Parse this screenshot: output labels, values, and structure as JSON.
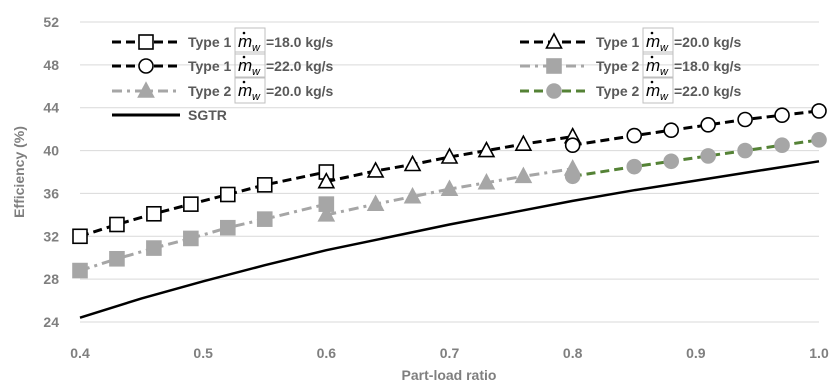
{
  "chart_data": {
    "type": "line",
    "xlabel": "Part-load ratio",
    "ylabel": "Efficiency (%)",
    "xlim": [
      0.4,
      1.0
    ],
    "ylim": [
      24,
      52
    ],
    "xticks": [
      0.4,
      0.5,
      0.6,
      0.7,
      0.8,
      0.9,
      1.0
    ],
    "xtick_labels": [
      "0.4",
      "0.5",
      "0.6",
      "0.7",
      "0.8",
      "0.9",
      "1.0"
    ],
    "yticks": [
      24,
      28,
      32,
      36,
      40,
      44,
      48,
      52
    ],
    "ytick_labels": [
      "24",
      "28",
      "32",
      "36",
      "40",
      "44",
      "48",
      "52"
    ],
    "grid": "horizontal",
    "legend_position": "top",
    "series": [
      {
        "name": "Type 1 ṁw=18.0 kg/s",
        "legend_prefix": "Type 1",
        "legend_suffix": "=18.0 kg/s",
        "color": "#000000",
        "marker": "open-square",
        "dash": "dashed",
        "x": [
          0.4,
          0.43,
          0.46,
          0.49,
          0.52,
          0.55,
          0.6
        ],
        "y": [
          32.0,
          33.1,
          34.1,
          35.0,
          35.9,
          36.8,
          38.0
        ]
      },
      {
        "name": "Type 1 ṁw=20.0 kg/s",
        "legend_prefix": "Type 1",
        "legend_suffix": "=20.0 kg/s",
        "color": "#000000",
        "marker": "open-triangle",
        "dash": "dashed",
        "x": [
          0.6,
          0.64,
          0.67,
          0.7,
          0.73,
          0.76,
          0.8
        ],
        "y": [
          37.1,
          38.1,
          38.7,
          39.4,
          40.0,
          40.6,
          41.3
        ]
      },
      {
        "name": "Type 1 ṁw=22.0 kg/s",
        "legend_prefix": "Type 1",
        "legend_suffix": "=22.0 kg/s",
        "color": "#000000",
        "marker": "open-circle",
        "dash": "dashed",
        "x": [
          0.8,
          0.85,
          0.88,
          0.91,
          0.94,
          0.97,
          1.0
        ],
        "y": [
          40.5,
          41.4,
          41.9,
          42.4,
          42.9,
          43.3,
          43.7
        ]
      },
      {
        "name": "Type 2 ṁw=18.0 kg/s",
        "legend_prefix": "Type 2",
        "legend_suffix": "=18.0 kg/s",
        "color": "#a6a6a6",
        "marker": "filled-square",
        "dash": "dashdot",
        "x": [
          0.4,
          0.43,
          0.46,
          0.49,
          0.52,
          0.55,
          0.6
        ],
        "y": [
          28.8,
          29.9,
          30.9,
          31.8,
          32.8,
          33.6,
          35.0
        ]
      },
      {
        "name": "Type 2 ṁw=20.0 kg/s",
        "legend_prefix": "Type 2",
        "legend_suffix": "=20.0 kg/s",
        "color": "#a6a6a6",
        "marker": "filled-triangle",
        "dash": "dashdot",
        "x": [
          0.6,
          0.64,
          0.67,
          0.7,
          0.73,
          0.76,
          0.8
        ],
        "y": [
          34.0,
          35.0,
          35.7,
          36.4,
          37.0,
          37.6,
          38.3
        ]
      },
      {
        "name": "Type 2 ṁw=22.0 kg/s",
        "legend_prefix": "Type 2",
        "legend_suffix": "=22.0 kg/s",
        "color": "#a6a6a6",
        "line_color": "#548235",
        "marker": "filled-circle",
        "dash": "dashed",
        "x": [
          0.8,
          0.85,
          0.88,
          0.91,
          0.94,
          0.97,
          1.0
        ],
        "y": [
          37.6,
          38.5,
          39.0,
          39.5,
          40.0,
          40.5,
          41.0
        ]
      },
      {
        "name": "SGTR",
        "legend_prefix": "SGTR",
        "legend_suffix": "",
        "color": "#000000",
        "marker": "none",
        "dash": "solid",
        "x": [
          0.4,
          0.45,
          0.5,
          0.55,
          0.6,
          0.65,
          0.7,
          0.75,
          0.8,
          0.85,
          0.9,
          0.95,
          1.0
        ],
        "y": [
          24.4,
          26.2,
          27.8,
          29.3,
          30.7,
          31.9,
          33.1,
          34.2,
          35.3,
          36.3,
          37.2,
          38.1,
          39.0
        ]
      }
    ]
  }
}
